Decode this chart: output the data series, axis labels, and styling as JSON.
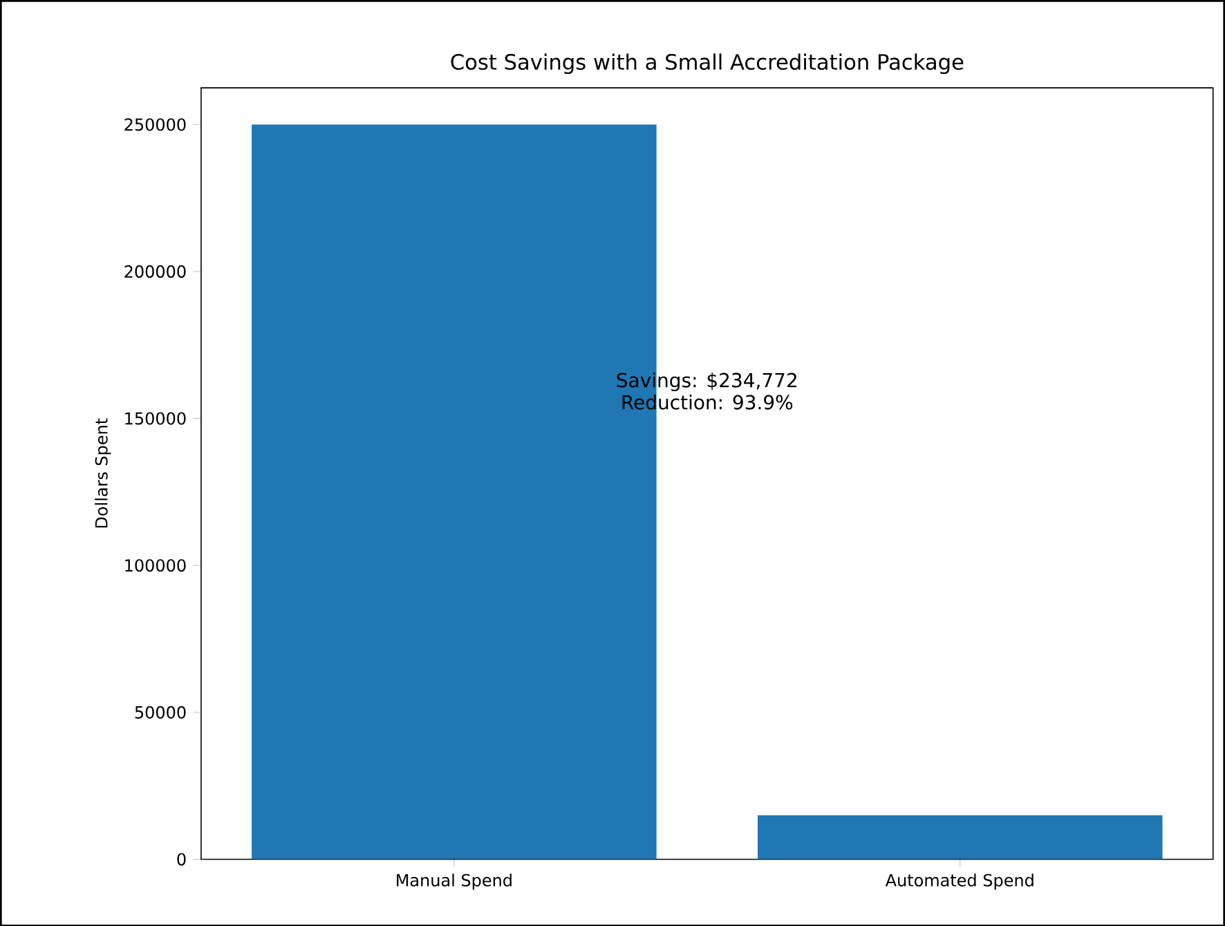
{
  "chart_data": {
    "type": "bar",
    "title": "Cost Savings with a Small Accreditation Package",
    "ylabel": "Dollars Spent",
    "categories": [
      "Manual Spend",
      "Automated Spend"
    ],
    "values": [
      250000,
      15000
    ],
    "color": "#1f77b4",
    "ylim": [
      0,
      262500
    ],
    "yticks": [
      0,
      50000,
      100000,
      150000,
      200000,
      250000
    ],
    "annotations": [
      "Savings: $234,772",
      "Reduction: 93.9%"
    ],
    "grid": false
  }
}
